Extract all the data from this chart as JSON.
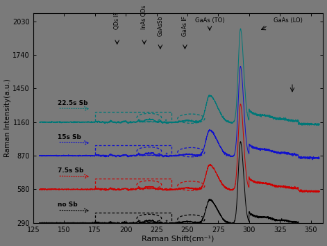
{
  "xlabel": "Raman Shift(cm⁻¹)",
  "ylabel": "Raman Intensity(a.u.)",
  "xlim": [
    125,
    360
  ],
  "ylim": [
    290,
    2100
  ],
  "yticks": [
    290,
    580,
    870,
    1160,
    1450,
    1740,
    2030
  ],
  "xticks": [
    125,
    150,
    175,
    200,
    225,
    250,
    275,
    300,
    325,
    350
  ],
  "bg_color": "#7a7a7a",
  "colors": {
    "black": "#000000",
    "red": "#cc0000",
    "blue": "#1111cc",
    "teal": "#007777"
  },
  "offsets": {
    "black": 0,
    "red": 290,
    "blue": 580,
    "teal": 870
  },
  "base": 290,
  "labels": {
    "black": "no Sb",
    "red": "7.5s Sb",
    "blue": "15s Sb",
    "teal": "22.5s Sb"
  }
}
